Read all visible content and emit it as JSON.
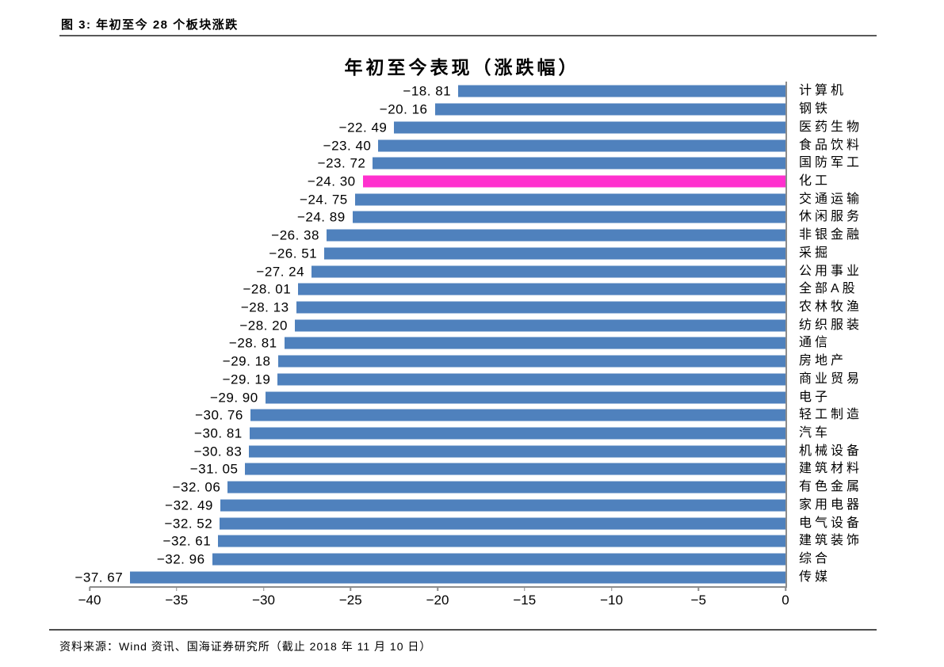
{
  "page": {
    "figure_label": "图 3: 年初至今 28 个板块涨跌",
    "source_note": "资料来源：Wind 资讯、国海证券研究所（截止 2018 年 11 月 10 日）",
    "background": "#FFFFFF"
  },
  "chart_data": {
    "type": "bar",
    "orientation": "horizontal",
    "title": "年初至今表现（涨跌幅）",
    "categories": [
      "计算机",
      "钢铁",
      "医药生物",
      "食品饮料",
      "国防军工",
      "化工",
      "交通运输",
      "休闲服务",
      "非银金融",
      "采掘",
      "公用事业",
      "全部A股",
      "农林牧渔",
      "纺织服装",
      "通信",
      "房地产",
      "商业贸易",
      "电子",
      "轻工制造",
      "汽车",
      "机械设备",
      "建筑材料",
      "有色金属",
      "家用电器",
      "电气设备",
      "建筑装饰",
      "综合",
      "传媒"
    ],
    "values": [
      -18.81,
      -20.16,
      -22.49,
      -23.4,
      -23.72,
      -24.3,
      -24.75,
      -24.89,
      -26.38,
      -26.51,
      -27.24,
      -28.01,
      -28.13,
      -28.2,
      -28.81,
      -29.18,
      -29.19,
      -29.9,
      -30.76,
      -30.81,
      -30.83,
      -31.05,
      -32.06,
      -32.49,
      -32.52,
      -32.61,
      -32.96,
      -37.67
    ],
    "xlabel": "",
    "ylabel": "",
    "xlim": [
      -40,
      0
    ],
    "xticks": [
      -40,
      -35,
      -30,
      -25,
      -20,
      -15,
      -10,
      -5,
      0
    ],
    "grid": false,
    "legend": "none",
    "value_label_position": "outside-end",
    "bar_color": "#4F81BD",
    "highlight_category": "化工",
    "highlight_color": "#FF30CE",
    "axis_color": "#8C8C8C"
  }
}
